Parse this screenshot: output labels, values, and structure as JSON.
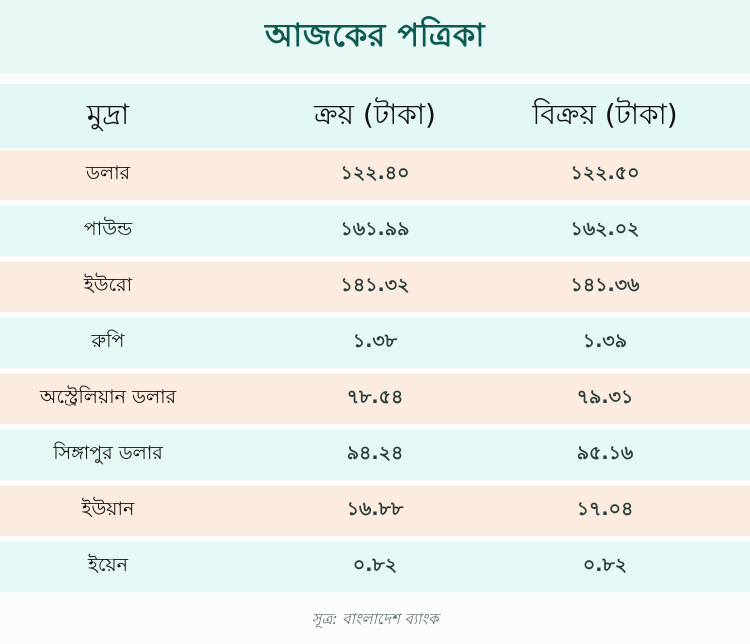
{
  "title": "আজকের পত্রিকা",
  "headers": {
    "currency": "মুদ্রা",
    "buy": "ক্রয় (টাকা)",
    "sell": "বিক্রয় (টাকা)"
  },
  "rows": [
    {
      "name": "ডলার",
      "buy": "১২২.৪০",
      "sell": "১২২.৫০"
    },
    {
      "name": "পাউন্ড",
      "buy": "১৬১.৯৯",
      "sell": "১৬২.০২"
    },
    {
      "name": "ইউরো",
      "buy": "১৪১.৩২",
      "sell": "১৪১.৩৬"
    },
    {
      "name": "রুপি",
      "buy": "১.৩৮",
      "sell": "১.৩৯"
    },
    {
      "name": "অস্ট্রেলিয়ান ডলার",
      "buy": "৭৮.৫৪",
      "sell": "৭৯.৩১"
    },
    {
      "name": "সিঙ্গাপুর ডলার",
      "buy": "৯৪.২৪",
      "sell": "৯৫.১৬"
    },
    {
      "name": "ইউয়ান",
      "buy": "১৬.৮৮",
      "sell": "১৭.০৪"
    },
    {
      "name": "ইয়েন",
      "buy": "০.৮২",
      "sell": "০.৮২"
    }
  ],
  "source": "সূত্র: বাংলাদেশ ব্যাংক",
  "colors": {
    "title": "#0d5a52",
    "peach_row": "#fcebdf",
    "mint_row": "#e5f8f5"
  }
}
